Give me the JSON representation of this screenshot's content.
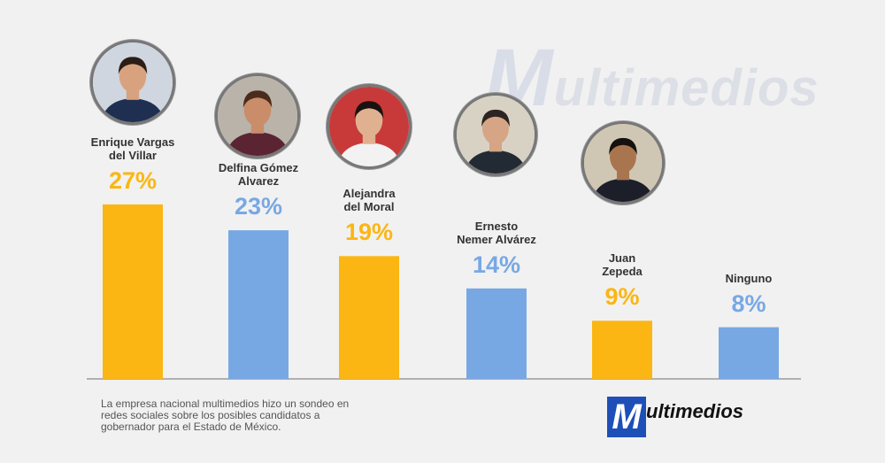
{
  "watermark": {
    "text": "ultimedios",
    "m": "M"
  },
  "chart_data": {
    "type": "bar",
    "categories": [
      "Enrique Vargas del Villar",
      "Delfina Gómez Alvarez",
      "Alejandra del Moral",
      "Ernesto Nemer Alvárez",
      "Juan Zepeda",
      "Ninguno"
    ],
    "name_lines": [
      "Enrique Vargas\ndel Villar",
      "Delfina Gómez\nAlvarez",
      "Alejandra\ndel Moral",
      "Ernesto\nNemer Alvárez",
      "Juan\nZepeda",
      "Ninguno"
    ],
    "values": [
      27,
      23,
      19,
      14,
      9,
      8
    ],
    "labels": [
      "27%",
      "23%",
      "19%",
      "14%",
      "9%",
      "8%"
    ],
    "colors": [
      "#fbb613",
      "#78a8e4",
      "#fbb613",
      "#78a8e4",
      "#fbb613",
      "#78a8e4"
    ],
    "ylim": [
      0,
      30
    ],
    "grid": false,
    "photo_icons": [
      "avatar-enrique-icon",
      "avatar-delfina-icon",
      "avatar-alejandra-icon",
      "avatar-ernesto-icon",
      "avatar-juan-icon",
      null
    ]
  },
  "caption": "La empresa nacional multimedios hizo un sondeo en redes sociales sobre los posibles candidatos a gobernador para el Estado de México.",
  "logo": {
    "m": "M",
    "text": "ultimedios"
  }
}
